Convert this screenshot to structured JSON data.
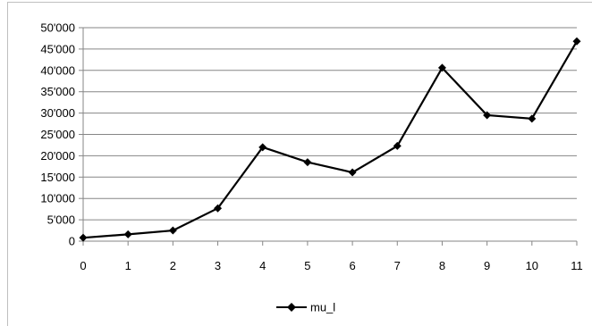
{
  "chart_data": {
    "type": "line",
    "x": [
      0,
      1,
      2,
      3,
      4,
      5,
      6,
      7,
      8,
      9,
      10,
      11
    ],
    "series": [
      {
        "name": "mu_l",
        "values": [
          800,
          1600,
          2500,
          7700,
          22000,
          18500,
          16100,
          22300,
          40600,
          29500,
          28700,
          46800
        ],
        "color": "#000000",
        "marker": "diamond"
      }
    ],
    "x_ticks": [
      "0",
      "1",
      "2",
      "3",
      "4",
      "5",
      "6",
      "7",
      "8",
      "9",
      "10",
      "11"
    ],
    "y_ticks": [
      "0",
      "5'000",
      "10'000",
      "15'000",
      "20'000",
      "25'000",
      "30'000",
      "35'000",
      "40'000",
      "45'000",
      "50'000"
    ],
    "ylim": [
      0,
      50000
    ],
    "grid": "horizontal",
    "legend_position": "bottom",
    "colors": {
      "grid": "#868686",
      "axis": "#868686",
      "line": "#000000"
    }
  }
}
